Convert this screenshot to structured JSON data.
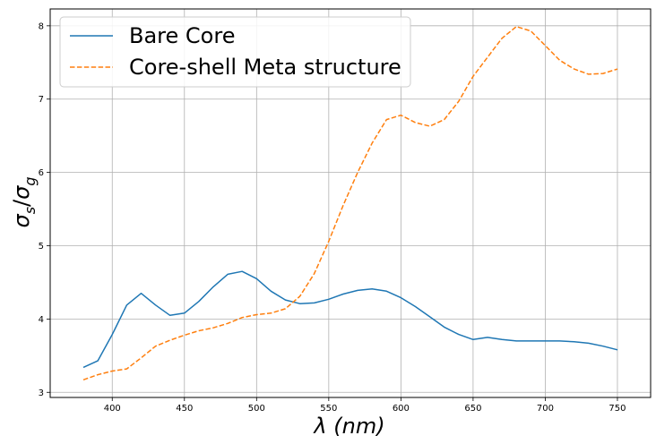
{
  "chart_data": {
    "type": "line",
    "xlabel": "λ (nm)",
    "ylabel": "σs/σg",
    "ylabel_main": "σ",
    "ylabel_sub1": "s",
    "ylabel_slash": "/",
    "ylabel_sub2": "g",
    "xlim": [
      357,
      773
    ],
    "ylim": [
      2.93,
      8.23
    ],
    "xticks": [
      400,
      450,
      500,
      550,
      600,
      650,
      700,
      750
    ],
    "yticks": [
      3,
      4,
      5,
      6,
      7,
      8
    ],
    "grid": true,
    "legend_position": "top-left",
    "x": [
      380,
      390,
      400,
      410,
      420,
      430,
      440,
      450,
      460,
      470,
      480,
      490,
      500,
      510,
      520,
      530,
      540,
      550,
      560,
      570,
      580,
      590,
      600,
      610,
      620,
      630,
      640,
      650,
      660,
      670,
      680,
      690,
      700,
      710,
      720,
      730,
      740,
      750
    ],
    "series": [
      {
        "name": "Bare Core",
        "color": "#1f77b4",
        "style": "solid",
        "values": [
          3.34,
          3.43,
          3.79,
          4.19,
          4.35,
          4.19,
          4.05,
          4.08,
          4.24,
          4.44,
          4.61,
          4.65,
          4.55,
          4.38,
          4.26,
          4.21,
          4.22,
          4.27,
          4.34,
          4.39,
          4.41,
          4.38,
          4.29,
          4.17,
          4.03,
          3.89,
          3.79,
          3.72,
          3.75,
          3.72,
          3.7,
          3.7,
          3.7,
          3.7,
          3.69,
          3.67,
          3.63,
          3.58
        ]
      },
      {
        "name": "Core-shell Meta structure",
        "color": "#ff7f0e",
        "style": "dashed",
        "values": [
          3.17,
          3.24,
          3.29,
          3.32,
          3.47,
          3.63,
          3.71,
          3.78,
          3.84,
          3.88,
          3.94,
          4.02,
          4.06,
          4.08,
          4.14,
          4.31,
          4.62,
          5.06,
          5.55,
          6.0,
          6.4,
          6.72,
          6.78,
          6.68,
          6.63,
          6.72,
          6.97,
          7.31,
          7.57,
          7.83,
          7.99,
          7.93,
          7.73,
          7.53,
          7.41,
          7.34,
          7.35,
          7.41
        ]
      }
    ]
  }
}
